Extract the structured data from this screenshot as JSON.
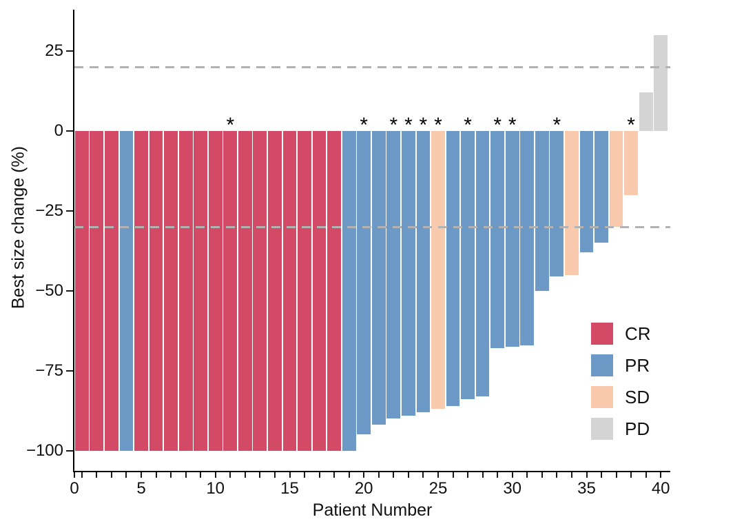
{
  "chart_data": {
    "type": "bar",
    "variant": "waterfall",
    "title": "",
    "xlabel": "Patient Number",
    "ylabel": "Best size change (%)",
    "xlim": [
      0,
      40
    ],
    "ylim": [
      -110,
      38
    ],
    "grid": false,
    "legend_position": "lower-right",
    "star_symbol": "*",
    "x_major_ticks": [
      0,
      5,
      10,
      15,
      20,
      25,
      30,
      35,
      40
    ],
    "x_minor_tick_every": 1,
    "y_ticks": [
      {
        "value": 25,
        "label": "25"
      },
      {
        "value": 0,
        "label": "0"
      },
      {
        "value": -25,
        "label": "−25"
      },
      {
        "value": -50,
        "label": "−50"
      },
      {
        "value": -75,
        "label": "−75"
      },
      {
        "value": -100,
        "label": "−100"
      }
    ],
    "reference_lines": [
      {
        "y": 20,
        "style": "dashed",
        "color": "#b2b2b2"
      },
      {
        "y": -30,
        "style": "dashed",
        "color": "#b2b2b2"
      }
    ],
    "series_colors": {
      "CR": "#d24a66",
      "PR": "#6c99c6",
      "SD": "#f9c9ae",
      "PD": "#d4d4d4"
    },
    "legend": [
      {
        "key": "CR",
        "label": "CR"
      },
      {
        "key": "PR",
        "label": "PR"
      },
      {
        "key": "SD",
        "label": "SD"
      },
      {
        "key": "PD",
        "label": "PD"
      }
    ],
    "patients": [
      {
        "n": 1,
        "value": -100,
        "response": "CR",
        "star": false
      },
      {
        "n": 2,
        "value": -100,
        "response": "CR",
        "star": false
      },
      {
        "n": 3,
        "value": -100,
        "response": "CR",
        "star": false
      },
      {
        "n": 4,
        "value": -100,
        "response": "PR",
        "star": false
      },
      {
        "n": 5,
        "value": -100,
        "response": "CR",
        "star": false
      },
      {
        "n": 6,
        "value": -100,
        "response": "CR",
        "star": false
      },
      {
        "n": 7,
        "value": -100,
        "response": "CR",
        "star": false
      },
      {
        "n": 8,
        "value": -100,
        "response": "CR",
        "star": false
      },
      {
        "n": 9,
        "value": -100,
        "response": "CR",
        "star": false
      },
      {
        "n": 10,
        "value": -100,
        "response": "CR",
        "star": false
      },
      {
        "n": 11,
        "value": -100,
        "response": "CR",
        "star": true
      },
      {
        "n": 12,
        "value": -100,
        "response": "CR",
        "star": false
      },
      {
        "n": 13,
        "value": -100,
        "response": "CR",
        "star": false
      },
      {
        "n": 14,
        "value": -100,
        "response": "CR",
        "star": false
      },
      {
        "n": 15,
        "value": -100,
        "response": "CR",
        "star": false
      },
      {
        "n": 16,
        "value": -100,
        "response": "CR",
        "star": false
      },
      {
        "n": 17,
        "value": -100,
        "response": "CR",
        "star": false
      },
      {
        "n": 18,
        "value": -100,
        "response": "CR",
        "star": false
      },
      {
        "n": 19,
        "value": -100,
        "response": "PR",
        "star": false
      },
      {
        "n": 20,
        "value": -95,
        "response": "PR",
        "star": true
      },
      {
        "n": 21,
        "value": -92,
        "response": "PR",
        "star": false
      },
      {
        "n": 22,
        "value": -90,
        "response": "PR",
        "star": true
      },
      {
        "n": 23,
        "value": -89,
        "response": "PR",
        "star": true
      },
      {
        "n": 24,
        "value": -88,
        "response": "PR",
        "star": true
      },
      {
        "n": 25,
        "value": -87,
        "response": "SD",
        "star": true
      },
      {
        "n": 26,
        "value": -86,
        "response": "PR",
        "star": false
      },
      {
        "n": 27,
        "value": -84,
        "response": "PR",
        "star": true
      },
      {
        "n": 28,
        "value": -83,
        "response": "PR",
        "star": false
      },
      {
        "n": 29,
        "value": -68,
        "response": "PR",
        "star": true
      },
      {
        "n": 30,
        "value": -67.5,
        "response": "PR",
        "star": true
      },
      {
        "n": 31,
        "value": -67,
        "response": "PR",
        "star": false
      },
      {
        "n": 32,
        "value": -50,
        "response": "PR",
        "star": false
      },
      {
        "n": 33,
        "value": -45.5,
        "response": "PR",
        "star": true
      },
      {
        "n": 34,
        "value": -45,
        "response": "SD",
        "star": false
      },
      {
        "n": 35,
        "value": -38,
        "response": "PR",
        "star": false
      },
      {
        "n": 36,
        "value": -35,
        "response": "PR",
        "star": false
      },
      {
        "n": 37,
        "value": -30,
        "response": "SD",
        "star": false
      },
      {
        "n": 38,
        "value": -20,
        "response": "SD",
        "star": true
      },
      {
        "n": 39,
        "value": 12,
        "response": "PD",
        "star": false
      },
      {
        "n": 40,
        "value": 30,
        "response": "PD",
        "star": false
      }
    ]
  }
}
